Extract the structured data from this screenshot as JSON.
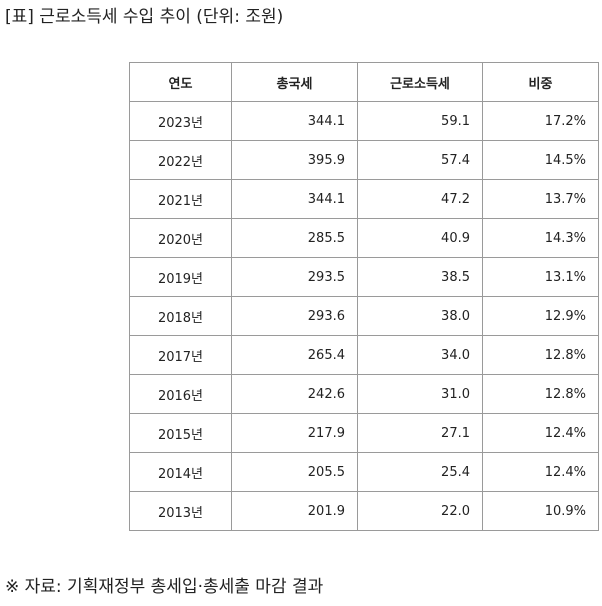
{
  "caption": "[표] 근로소득세 수입 추이 (단위: 조원)",
  "table": {
    "headers": [
      "연도",
      "총국세",
      "근로소득세",
      "비중"
    ],
    "rows": [
      [
        "2023년",
        "344.1",
        "59.1",
        "17.2%"
      ],
      [
        "2022년",
        "395.9",
        "57.4",
        "14.5%"
      ],
      [
        "2021년",
        "344.1",
        "47.2",
        "13.7%"
      ],
      [
        "2020년",
        "285.5",
        "40.9",
        "14.3%"
      ],
      [
        "2019년",
        "293.5",
        "38.5",
        "13.1%"
      ],
      [
        "2018년",
        "293.6",
        "38.0",
        "12.9%"
      ],
      [
        "2017년",
        "265.4",
        "34.0",
        "12.8%"
      ],
      [
        "2016년",
        "242.6",
        "31.0",
        "12.8%"
      ],
      [
        "2015년",
        "217.9",
        "27.1",
        "12.4%"
      ],
      [
        "2014년",
        "205.5",
        "25.4",
        "12.4%"
      ],
      [
        "2013년",
        "201.9",
        "22.0",
        "10.9%"
      ]
    ]
  },
  "source": "※ 자료: 기획재정부 총세입·총세출 마감 결과"
}
